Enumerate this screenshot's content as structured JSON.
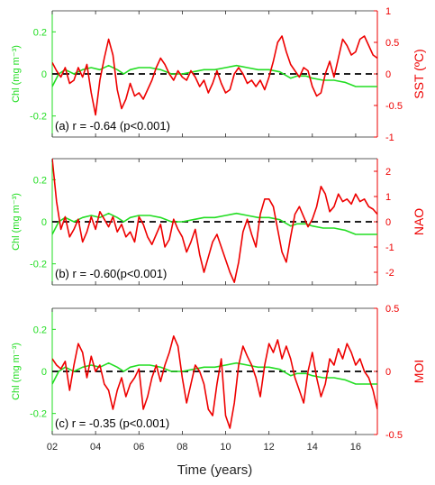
{
  "chart_data": [
    {
      "type": "line",
      "panel": "a",
      "annotation": "(a) r = -0.64 (p<0.001)",
      "xlim": [
        2002,
        2017
      ],
      "x_ticks": [
        2002,
        2004,
        2006,
        2008,
        2010,
        2012,
        2014,
        2016
      ],
      "x_tick_labels": [
        "02",
        "04",
        "06",
        "08",
        "10",
        "12",
        "14",
        "16"
      ],
      "left_axis": {
        "label": "Chl (mg m⁻³)",
        "ylim": [
          -0.3,
          0.3
        ],
        "ticks": [
          0.2,
          0,
          -0.2
        ],
        "tick_labels": [
          "0.2",
          "0",
          "-0.2"
        ],
        "color": "#22dd22"
      },
      "right_axis": {
        "label": "SST (ºC)",
        "ylim": [
          -1,
          1
        ],
        "ticks": [
          1,
          0.5,
          0,
          -0.5,
          -1
        ],
        "tick_labels": [
          "1",
          "0.5",
          "0",
          "-0.5",
          "-1"
        ],
        "color": "#ee0000"
      },
      "zero_line": true,
      "series": [
        {
          "axis": "left",
          "color": "#22dd22",
          "x": [
            2002.0,
            2002.3,
            2002.6,
            2003.0,
            2003.4,
            2003.8,
            2004.2,
            2004.6,
            2005.0,
            2005.3,
            2005.6,
            2006.0,
            2006.5,
            2007.0,
            2007.5,
            2008.0,
            2008.5,
            2009.0,
            2009.5,
            2010.0,
            2010.5,
            2011.0,
            2011.5,
            2012.0,
            2012.5,
            2013.0,
            2013.3,
            2013.7,
            2014.0,
            2014.5,
            2015.0,
            2015.5,
            2016.0,
            2016.5,
            2017.0
          ],
          "y": [
            -0.06,
            0.0,
            0.02,
            0.0,
            0.02,
            0.03,
            0.02,
            0.04,
            0.02,
            0.0,
            0.02,
            0.03,
            0.03,
            0.02,
            0.0,
            0.0,
            0.01,
            0.02,
            0.02,
            0.03,
            0.04,
            0.03,
            0.02,
            0.02,
            0.01,
            -0.02,
            -0.01,
            -0.01,
            -0.02,
            -0.03,
            -0.03,
            -0.04,
            -0.06,
            -0.06,
            -0.06
          ]
        },
        {
          "axis": "right",
          "color": "#ee0000",
          "x": [
            2002.0,
            2002.2,
            2002.4,
            2002.6,
            2002.8,
            2003.0,
            2003.2,
            2003.4,
            2003.6,
            2003.8,
            2004.0,
            2004.2,
            2004.4,
            2004.6,
            2004.8,
            2005.0,
            2005.2,
            2005.4,
            2005.6,
            2005.8,
            2006.0,
            2006.2,
            2006.4,
            2006.6,
            2006.8,
            2007.0,
            2007.2,
            2007.4,
            2007.6,
            2007.8,
            2008.0,
            2008.2,
            2008.4,
            2008.6,
            2008.8,
            2009.0,
            2009.2,
            2009.4,
            2009.6,
            2009.8,
            2010.0,
            2010.2,
            2010.4,
            2010.6,
            2010.8,
            2011.0,
            2011.2,
            2011.4,
            2011.6,
            2011.8,
            2012.0,
            2012.2,
            2012.4,
            2012.6,
            2012.8,
            2013.0,
            2013.2,
            2013.4,
            2013.6,
            2013.8,
            2014.0,
            2014.2,
            2014.4,
            2014.6,
            2014.8,
            2015.0,
            2015.2,
            2015.4,
            2015.6,
            2015.8,
            2016.0,
            2016.2,
            2016.4,
            2016.6,
            2016.8,
            2017.0
          ],
          "y": [
            0.18,
            0.05,
            -0.05,
            0.1,
            -0.15,
            -0.1,
            0.1,
            -0.05,
            0.15,
            -0.3,
            -0.65,
            -0.1,
            0.25,
            0.55,
            0.3,
            -0.25,
            -0.55,
            -0.4,
            -0.15,
            -0.35,
            -0.3,
            -0.4,
            -0.25,
            -0.1,
            0.1,
            0.25,
            0.15,
            0.0,
            -0.1,
            0.05,
            -0.05,
            -0.1,
            0.05,
            -0.05,
            -0.2,
            -0.1,
            -0.3,
            -0.15,
            0.05,
            -0.15,
            -0.3,
            -0.25,
            0.0,
            0.1,
            0.0,
            -0.15,
            -0.1,
            -0.2,
            -0.1,
            -0.25,
            -0.05,
            0.2,
            0.5,
            0.6,
            0.35,
            0.15,
            0.05,
            -0.05,
            0.1,
            0.05,
            -0.2,
            -0.35,
            -0.3,
            0.0,
            0.2,
            -0.05,
            0.25,
            0.55,
            0.45,
            0.3,
            0.35,
            0.55,
            0.6,
            0.45,
            0.3,
            0.25
          ]
        }
      ]
    },
    {
      "type": "line",
      "panel": "b",
      "annotation": "(b) r = -0.60(p<0.001)",
      "xlim": [
        2002,
        2017
      ],
      "x_ticks": [
        2002,
        2004,
        2006,
        2008,
        2010,
        2012,
        2014,
        2016
      ],
      "x_tick_labels": [
        "02",
        "04",
        "06",
        "08",
        "10",
        "12",
        "14",
        "16"
      ],
      "left_axis": {
        "label": "Chl (mg m⁻³)",
        "ylim": [
          -0.3,
          0.3
        ],
        "ticks": [
          0.2,
          0,
          -0.2
        ],
        "tick_labels": [
          "0.2",
          "0",
          "-0.2"
        ],
        "color": "#22dd22"
      },
      "right_axis": {
        "label": "NAO",
        "ylim": [
          -2.5,
          2.5
        ],
        "ticks": [
          2,
          1,
          0,
          -1,
          -2
        ],
        "tick_labels": [
          "2",
          "1",
          "0",
          "-1",
          "-2"
        ],
        "color": "#ee0000"
      },
      "zero_line": true,
      "series": [
        {
          "axis": "left",
          "color": "#22dd22",
          "x": [
            2002.0,
            2002.3,
            2002.6,
            2003.0,
            2003.4,
            2003.8,
            2004.2,
            2004.6,
            2005.0,
            2005.3,
            2005.6,
            2006.0,
            2006.5,
            2007.0,
            2007.5,
            2008.0,
            2008.5,
            2009.0,
            2009.5,
            2010.0,
            2010.5,
            2011.0,
            2011.5,
            2012.0,
            2012.5,
            2013.0,
            2013.3,
            2013.7,
            2014.0,
            2014.5,
            2015.0,
            2015.5,
            2016.0,
            2016.5,
            2017.0
          ],
          "y": [
            -0.06,
            0.0,
            0.02,
            0.0,
            0.02,
            0.03,
            0.02,
            0.04,
            0.02,
            0.0,
            0.02,
            0.03,
            0.03,
            0.02,
            0.0,
            0.0,
            0.01,
            0.02,
            0.02,
            0.03,
            0.04,
            0.03,
            0.02,
            0.02,
            0.01,
            -0.02,
            -0.01,
            -0.01,
            -0.02,
            -0.03,
            -0.03,
            -0.04,
            -0.06,
            -0.06,
            -0.06
          ]
        },
        {
          "axis": "right",
          "color": "#ee0000",
          "x": [
            2002.0,
            2002.2,
            2002.4,
            2002.6,
            2002.8,
            2003.0,
            2003.2,
            2003.4,
            2003.6,
            2003.8,
            2004.0,
            2004.2,
            2004.4,
            2004.6,
            2004.8,
            2005.0,
            2005.2,
            2005.4,
            2005.6,
            2005.8,
            2006.0,
            2006.2,
            2006.4,
            2006.6,
            2006.8,
            2007.0,
            2007.2,
            2007.4,
            2007.6,
            2007.8,
            2008.0,
            2008.2,
            2008.4,
            2008.6,
            2008.8,
            2009.0,
            2009.2,
            2009.4,
            2009.6,
            2009.8,
            2010.0,
            2010.2,
            2010.4,
            2010.6,
            2010.8,
            2011.0,
            2011.2,
            2011.4,
            2011.6,
            2011.8,
            2012.0,
            2012.2,
            2012.4,
            2012.6,
            2012.8,
            2013.0,
            2013.2,
            2013.4,
            2013.6,
            2013.8,
            2014.0,
            2014.2,
            2014.4,
            2014.6,
            2014.8,
            2015.0,
            2015.2,
            2015.4,
            2015.6,
            2015.8,
            2016.0,
            2016.2,
            2016.4,
            2016.6,
            2016.8,
            2017.0
          ],
          "y": [
            2.5,
            0.8,
            -0.3,
            0.2,
            -0.6,
            -0.3,
            0.1,
            -0.8,
            -0.4,
            0.2,
            -0.3,
            0.4,
            0.1,
            -0.2,
            0.2,
            -0.4,
            -0.1,
            -0.6,
            -0.4,
            -0.8,
            0.2,
            -0.1,
            -0.6,
            -0.9,
            -0.5,
            -0.1,
            -1.0,
            -0.7,
            0.1,
            -0.3,
            -0.6,
            -1.2,
            -0.8,
            -0.3,
            -1.3,
            -2.0,
            -1.4,
            -0.8,
            -0.5,
            -1.0,
            -1.5,
            -2.0,
            -2.4,
            -1.6,
            -0.4,
            0.1,
            -0.5,
            -1.0,
            0.3,
            0.9,
            0.9,
            0.6,
            -0.3,
            -1.2,
            -1.6,
            -0.6,
            0.3,
            0.6,
            0.2,
            -0.2,
            0.1,
            0.6,
            1.4,
            1.1,
            0.4,
            0.6,
            1.1,
            0.8,
            0.9,
            0.7,
            1.1,
            0.8,
            0.9,
            0.6,
            0.5,
            0.3
          ]
        }
      ]
    },
    {
      "type": "line",
      "panel": "c",
      "annotation": "(c) r = -0.35 (p<0.001)",
      "xlim": [
        2002,
        2017
      ],
      "x_ticks": [
        2002,
        2004,
        2006,
        2008,
        2010,
        2012,
        2014,
        2016
      ],
      "x_tick_labels": [
        "02",
        "04",
        "06",
        "08",
        "10",
        "12",
        "14",
        "16"
      ],
      "xlabel": "Time (years)",
      "left_axis": {
        "label": "Chl (mg m⁻³)",
        "ylim": [
          -0.3,
          0.3
        ],
        "ticks": [
          0.2,
          0,
          -0.2
        ],
        "tick_labels": [
          "0.2",
          "0",
          "-0.2"
        ],
        "color": "#22dd22"
      },
      "right_axis": {
        "label": "MOI",
        "ylim": [
          -0.5,
          0.5
        ],
        "ticks": [
          0.5,
          0,
          -0.5
        ],
        "tick_labels": [
          "0.5",
          "0",
          "-0.5"
        ],
        "color": "#ee0000"
      },
      "zero_line": true,
      "series": [
        {
          "axis": "left",
          "color": "#22dd22",
          "x": [
            2002.0,
            2002.3,
            2002.6,
            2003.0,
            2003.4,
            2003.8,
            2004.2,
            2004.6,
            2005.0,
            2005.3,
            2005.6,
            2006.0,
            2006.5,
            2007.0,
            2007.5,
            2008.0,
            2008.5,
            2009.0,
            2009.5,
            2010.0,
            2010.5,
            2011.0,
            2011.5,
            2012.0,
            2012.5,
            2013.0,
            2013.3,
            2013.7,
            2014.0,
            2014.5,
            2015.0,
            2015.5,
            2016.0,
            2016.5,
            2017.0
          ],
          "y": [
            -0.06,
            0.0,
            0.02,
            0.0,
            0.02,
            0.03,
            0.02,
            0.04,
            0.02,
            0.0,
            0.02,
            0.03,
            0.03,
            0.02,
            0.0,
            0.0,
            0.01,
            0.02,
            0.02,
            0.03,
            0.04,
            0.03,
            0.02,
            0.02,
            0.01,
            -0.02,
            -0.01,
            -0.01,
            -0.02,
            -0.03,
            -0.03,
            -0.04,
            -0.06,
            -0.06,
            -0.06
          ]
        },
        {
          "axis": "right",
          "color": "#ee0000",
          "x": [
            2002.0,
            2002.2,
            2002.4,
            2002.6,
            2002.8,
            2003.0,
            2003.2,
            2003.4,
            2003.6,
            2003.8,
            2004.0,
            2004.2,
            2004.4,
            2004.6,
            2004.8,
            2005.0,
            2005.2,
            2005.4,
            2005.6,
            2005.8,
            2006.0,
            2006.2,
            2006.4,
            2006.6,
            2006.8,
            2007.0,
            2007.2,
            2007.4,
            2007.6,
            2007.8,
            2008.0,
            2008.2,
            2008.4,
            2008.6,
            2008.8,
            2009.0,
            2009.2,
            2009.4,
            2009.6,
            2009.8,
            2010.0,
            2010.2,
            2010.4,
            2010.6,
            2010.8,
            2011.0,
            2011.2,
            2011.4,
            2011.6,
            2011.8,
            2012.0,
            2012.2,
            2012.4,
            2012.6,
            2012.8,
            2013.0,
            2013.2,
            2013.4,
            2013.6,
            2013.8,
            2014.0,
            2014.2,
            2014.4,
            2014.6,
            2014.8,
            2015.0,
            2015.2,
            2015.4,
            2015.6,
            2015.8,
            2016.0,
            2016.2,
            2016.4,
            2016.6,
            2016.8,
            2017.0
          ],
          "y": [
            0.1,
            0.05,
            0.02,
            0.08,
            -0.15,
            0.05,
            0.22,
            0.15,
            -0.05,
            0.12,
            0.0,
            0.05,
            -0.1,
            -0.15,
            -0.3,
            -0.15,
            -0.05,
            -0.2,
            -0.1,
            -0.05,
            0.02,
            -0.3,
            -0.2,
            -0.05,
            0.05,
            -0.08,
            0.05,
            0.15,
            0.28,
            0.2,
            -0.05,
            -0.25,
            -0.1,
            0.05,
            0.0,
            -0.1,
            -0.3,
            -0.35,
            -0.1,
            0.1,
            -0.35,
            -0.45,
            -0.25,
            0.05,
            0.2,
            0.12,
            0.05,
            -0.05,
            -0.2,
            0.05,
            0.22,
            0.15,
            0.25,
            0.1,
            0.2,
            0.1,
            -0.05,
            -0.15,
            -0.25,
            0.0,
            0.15,
            -0.05,
            -0.2,
            -0.1,
            0.1,
            0.05,
            0.18,
            0.1,
            0.22,
            0.15,
            0.05,
            0.1,
            0.0,
            -0.05,
            -0.15,
            -0.3
          ]
        }
      ]
    }
  ]
}
